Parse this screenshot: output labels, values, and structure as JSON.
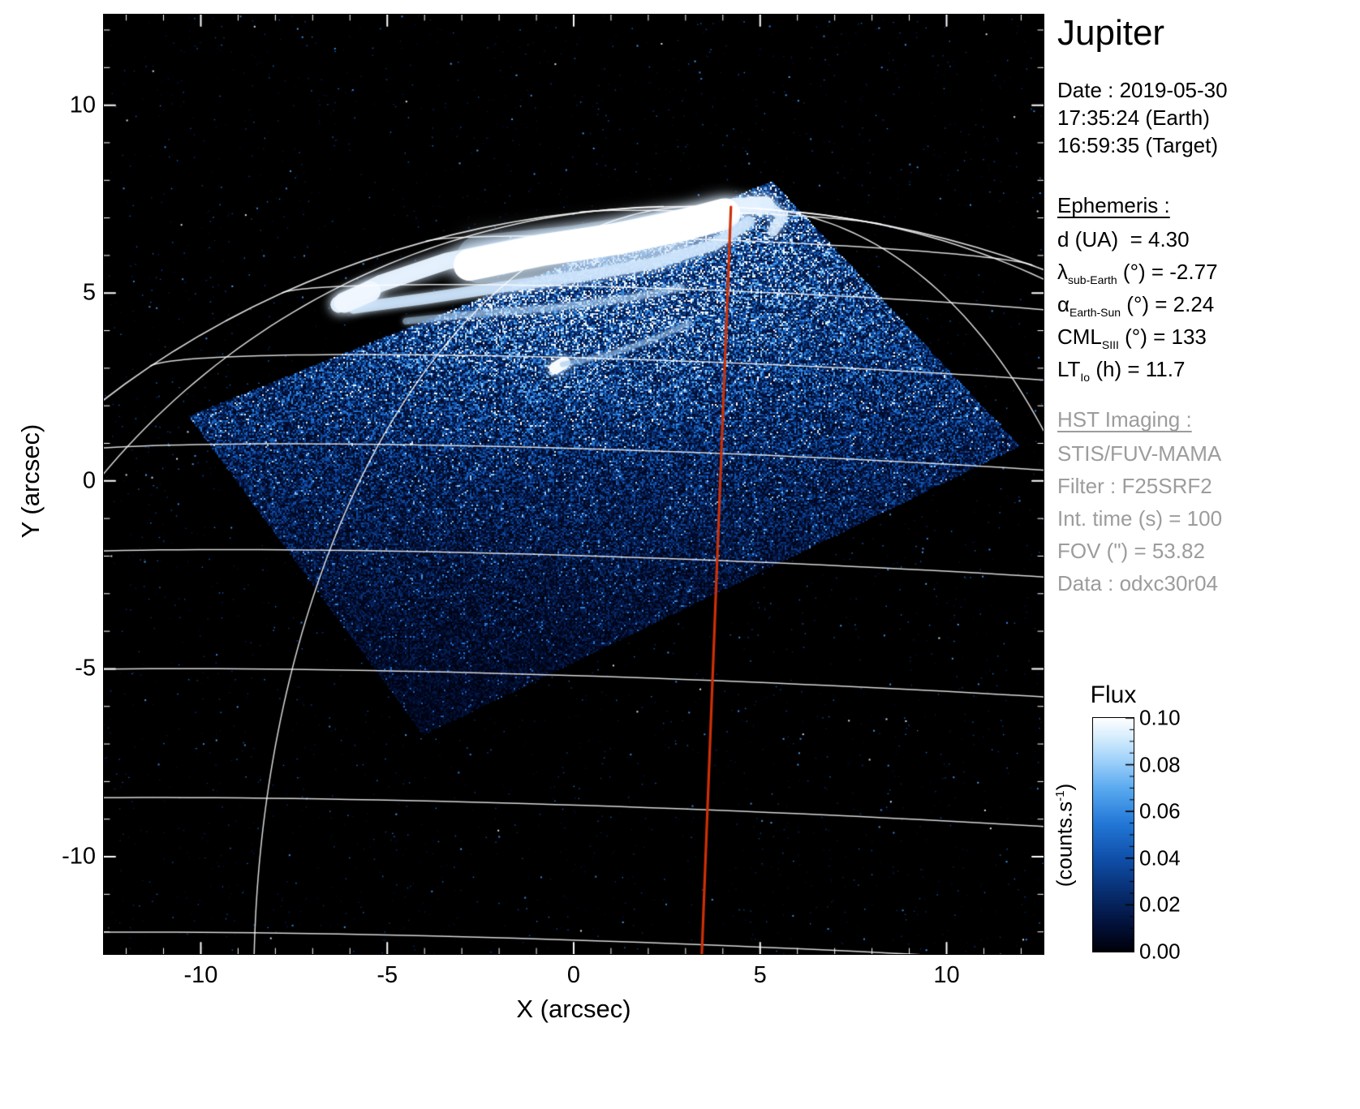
{
  "chart_data": {
    "type": "heatmap",
    "title": "Jupiter",
    "xlabel": "X (arcsec)",
    "ylabel": "Y (arcsec)",
    "xlim": [
      -12.6,
      12.6
    ],
    "ylim": [
      -12.59,
      12.41
    ],
    "xticks": [
      -10,
      -5,
      0,
      5,
      10
    ],
    "yticks": [
      -10,
      -5,
      0,
      5,
      10
    ],
    "minor_tick_step": 1,
    "background": "#000000",
    "flux_range": [
      0.0,
      0.1
    ],
    "colormap_stops": [
      [
        0.0,
        [
          0,
          0,
          8
        ]
      ],
      [
        0.12,
        [
          3,
          18,
          60
        ]
      ],
      [
        0.25,
        [
          8,
          45,
          110
        ]
      ],
      [
        0.4,
        [
          16,
          80,
          170
        ]
      ],
      [
        0.55,
        [
          35,
          120,
          215
        ]
      ],
      [
        0.7,
        [
          90,
          170,
          240
        ]
      ],
      [
        0.82,
        [
          160,
          210,
          250
        ]
      ],
      [
        0.92,
        [
          215,
          238,
          253
        ]
      ],
      [
        1.0,
        [
          255,
          255,
          255
        ]
      ]
    ],
    "fov_polygon": [
      [
        -10.35,
        1.75
      ],
      [
        5.3,
        8.0
      ],
      [
        11.95,
        0.95
      ],
      [
        -4.05,
        -6.75
      ]
    ],
    "planet_grid": {
      "center": [
        3.4,
        -13.5
      ],
      "eq_radius": 24.0,
      "pol_radius": 20.8,
      "sub_earth_lat": -2.77,
      "pa": -2.25,
      "lats": [
        0,
        10,
        20,
        30,
        40,
        50,
        60,
        70,
        80
      ],
      "lons": [
        -60,
        -30,
        30,
        60
      ],
      "color": "#ffffff"
    },
    "cml": {
      "longitude_deg": 133,
      "color": "#cf3005"
    },
    "aurora_strokes": [
      {
        "pts": [
          [
            -6.3,
            4.7
          ],
          [
            -5.2,
            5.25
          ],
          [
            -3.4,
            5.85
          ],
          [
            -1.2,
            6.3
          ],
          [
            0.9,
            6.6
          ],
          [
            2.8,
            7.0
          ],
          [
            4.3,
            7.3
          ],
          [
            5.15,
            7.35
          ]
        ],
        "w": 0.45,
        "blur": 14,
        "alpha": 0.95,
        "color": "#e8f3ff"
      },
      {
        "pts": [
          [
            -2.5,
            5.9
          ],
          [
            0.0,
            6.15
          ],
          [
            2.5,
            6.55
          ]
        ],
        "w": 1.3,
        "blur": 24,
        "alpha": 0.4,
        "color": "#b8d8f5"
      },
      {
        "pts": [
          [
            -2.8,
            5.75
          ],
          [
            -0.8,
            6.15
          ],
          [
            1.2,
            6.45
          ],
          [
            2.9,
            6.8
          ],
          [
            4.05,
            7.1
          ]
        ],
        "w": 0.85,
        "blur": 20,
        "alpha": 1.0,
        "color": "#ffffff"
      },
      {
        "pts": [
          [
            -5.9,
            4.6
          ],
          [
            -4.0,
            4.85
          ],
          [
            -2.0,
            5.15
          ],
          [
            0.2,
            5.45
          ],
          [
            2.2,
            5.8
          ],
          [
            3.8,
            6.3
          ],
          [
            4.7,
            6.9
          ]
        ],
        "w": 0.3,
        "blur": 9,
        "alpha": 0.85,
        "color": "#cde4fb"
      },
      {
        "pts": [
          [
            -6.15,
            4.75
          ],
          [
            -5.45,
            5.05
          ]
        ],
        "w": 0.55,
        "blur": 14,
        "alpha": 0.95,
        "color": "#f0f7ff"
      },
      {
        "pts": [
          [
            5.15,
            7.35
          ],
          [
            5.6,
            7.05
          ],
          [
            5.35,
            6.65
          ]
        ],
        "w": 0.28,
        "blur": 10,
        "alpha": 0.8,
        "color": "#dceeff"
      },
      {
        "pts": [
          [
            -4.5,
            4.25
          ],
          [
            -2.6,
            4.45
          ],
          [
            -0.6,
            4.6
          ],
          [
            1.4,
            4.85
          ],
          [
            2.9,
            5.15
          ]
        ],
        "w": 0.18,
        "blur": 6,
        "alpha": 0.5,
        "color": "#9fc9ef"
      },
      {
        "pts": [
          [
            -0.5,
            3.0
          ],
          [
            -0.25,
            3.15
          ]
        ],
        "w": 0.32,
        "blur": 13,
        "alpha": 0.95,
        "color": "#ffffff"
      },
      {
        "pts": [
          [
            -0.3,
            3.1
          ],
          [
            0.9,
            3.35
          ],
          [
            2.1,
            3.75
          ],
          [
            3.1,
            4.2
          ]
        ],
        "w": 0.14,
        "blur": 5,
        "alpha": 0.45,
        "color": "#8abbe8"
      }
    ]
  },
  "panel": {
    "title": "Jupiter",
    "date_lines": [
      "Date : 2019-05-30",
      "17:35:24 (Earth)",
      "16:59:35 (Target)"
    ],
    "ephemeris_heading": "Ephemeris :",
    "ephemeris_rows": [
      {
        "pre": "d (UA)",
        "sub": "",
        "post": "  = 4.30"
      },
      {
        "pre": "λ",
        "sub": "sub-Earth",
        "post": " (°) = -2.77"
      },
      {
        "pre": "α",
        "sub": "Earth-Sun",
        "post": " (°) = 2.24"
      },
      {
        "pre": "CML",
        "sub": "SIII",
        "post": " (°) = 133"
      },
      {
        "pre": "LT",
        "sub": "Io",
        "post": " (h) = 11.7"
      }
    ],
    "hst_heading": "HST Imaging :",
    "hst_lines": [
      "STIS/FUV-MAMA",
      "Filter : F25SRF2",
      "Int. time (s) = 100",
      "FOV (\") = 53.82",
      "Data : odxc30r04"
    ],
    "gray_color": "#9c9c9c"
  },
  "colorbar": {
    "title": "Flux",
    "ticks": [
      "0.10",
      "0.08",
      "0.06",
      "0.04",
      "0.02",
      "0.00"
    ],
    "unit_pre": "(counts.s",
    "unit_sup": "-1",
    "unit_post": ")"
  }
}
